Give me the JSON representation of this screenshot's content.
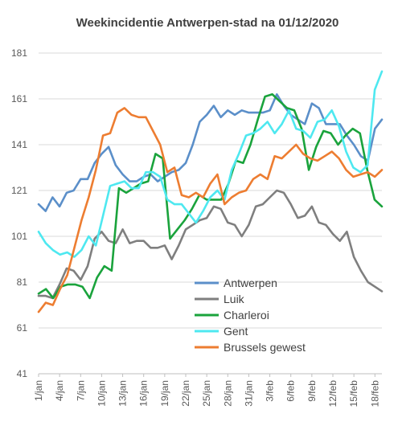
{
  "chart_data": {
    "type": "line",
    "title": "Weekincidentie  Antwerpen-stad na 01/12/2020",
    "xlabel": "",
    "ylabel": "",
    "ylim": [
      41,
      181
    ],
    "yticks": [
      41,
      61,
      81,
      101,
      121,
      141,
      161,
      181
    ],
    "xtick_labels": [
      "1/jan",
      "4/jan",
      "7/jan",
      "10/jan",
      "13/jan",
      "16/jan",
      "19/jan",
      "22/jan",
      "25/jan",
      "28/jan",
      "31/jan",
      "3/feb",
      "6/feb",
      "9/feb",
      "12/feb",
      "15/feb",
      "18/feb"
    ],
    "grid": "horizontal",
    "legend_position": "bottom-center",
    "series": [
      {
        "name": "Antwerpen",
        "color": "#5b8fc9",
        "values": [
          115,
          112,
          118,
          114,
          120,
          121,
          126,
          126,
          133,
          137,
          140,
          132,
          128,
          125,
          125,
          127,
          128,
          125,
          127,
          129,
          130,
          133,
          141,
          151,
          154,
          158,
          153,
          156,
          154,
          156,
          155,
          155,
          155,
          156,
          163,
          158,
          154,
          152,
          150,
          159,
          157,
          150,
          150,
          150,
          145,
          141,
          136,
          134,
          148,
          152
        ]
      },
      {
        "name": "Luik",
        "color": "#7f7f7f",
        "values": [
          75,
          75,
          74,
          80,
          87,
          86,
          82,
          88,
          100,
          103,
          99,
          98,
          104,
          98,
          99,
          99,
          96,
          96,
          97,
          91,
          97,
          104,
          106,
          108,
          109,
          114,
          113,
          107,
          106,
          101,
          106,
          114,
          115,
          118,
          121,
          120,
          115,
          109,
          110,
          114,
          107,
          106,
          102,
          99,
          103,
          92,
          86,
          81,
          79,
          77
        ]
      },
      {
        "name": "Charleroi",
        "color": "#1aa33c",
        "values": [
          76,
          78,
          74,
          79,
          80,
          80,
          79,
          74,
          83,
          88,
          86,
          122,
          120,
          122,
          124,
          125,
          137,
          135,
          100,
          104,
          108,
          113,
          119,
          117,
          117,
          117,
          124,
          134,
          133,
          141,
          152,
          162,
          163,
          160,
          157,
          156,
          148,
          130,
          140,
          147,
          146,
          141,
          145,
          148,
          146,
          130,
          117,
          114
        ]
      },
      {
        "name": "Gent",
        "color": "#4ee8f0",
        "values": [
          103,
          98,
          95,
          93,
          94,
          92,
          95,
          101,
          97,
          110,
          123,
          124,
          125,
          122,
          122,
          129,
          129,
          127,
          117,
          115,
          115,
          111,
          107,
          112,
          118,
          121,
          117,
          130,
          137,
          145,
          146,
          148,
          151,
          146,
          150,
          156,
          148,
          147,
          144,
          151,
          152,
          156,
          149,
          138,
          131,
          129,
          132,
          165,
          173
        ]
      },
      {
        "name": "Brussels gewest",
        "color": "#ed7d31",
        "values": [
          68,
          72,
          71,
          78,
          84,
          96,
          108,
          118,
          130,
          145,
          146,
          155,
          157,
          154,
          153,
          153,
          147,
          141,
          129,
          131,
          119,
          118,
          120,
          118,
          124,
          128,
          115,
          118,
          120,
          121,
          126,
          128,
          126,
          136,
          135,
          138,
          141,
          137,
          135,
          134,
          136,
          138,
          135,
          130,
          127,
          128,
          129,
          127,
          130
        ]
      }
    ]
  }
}
